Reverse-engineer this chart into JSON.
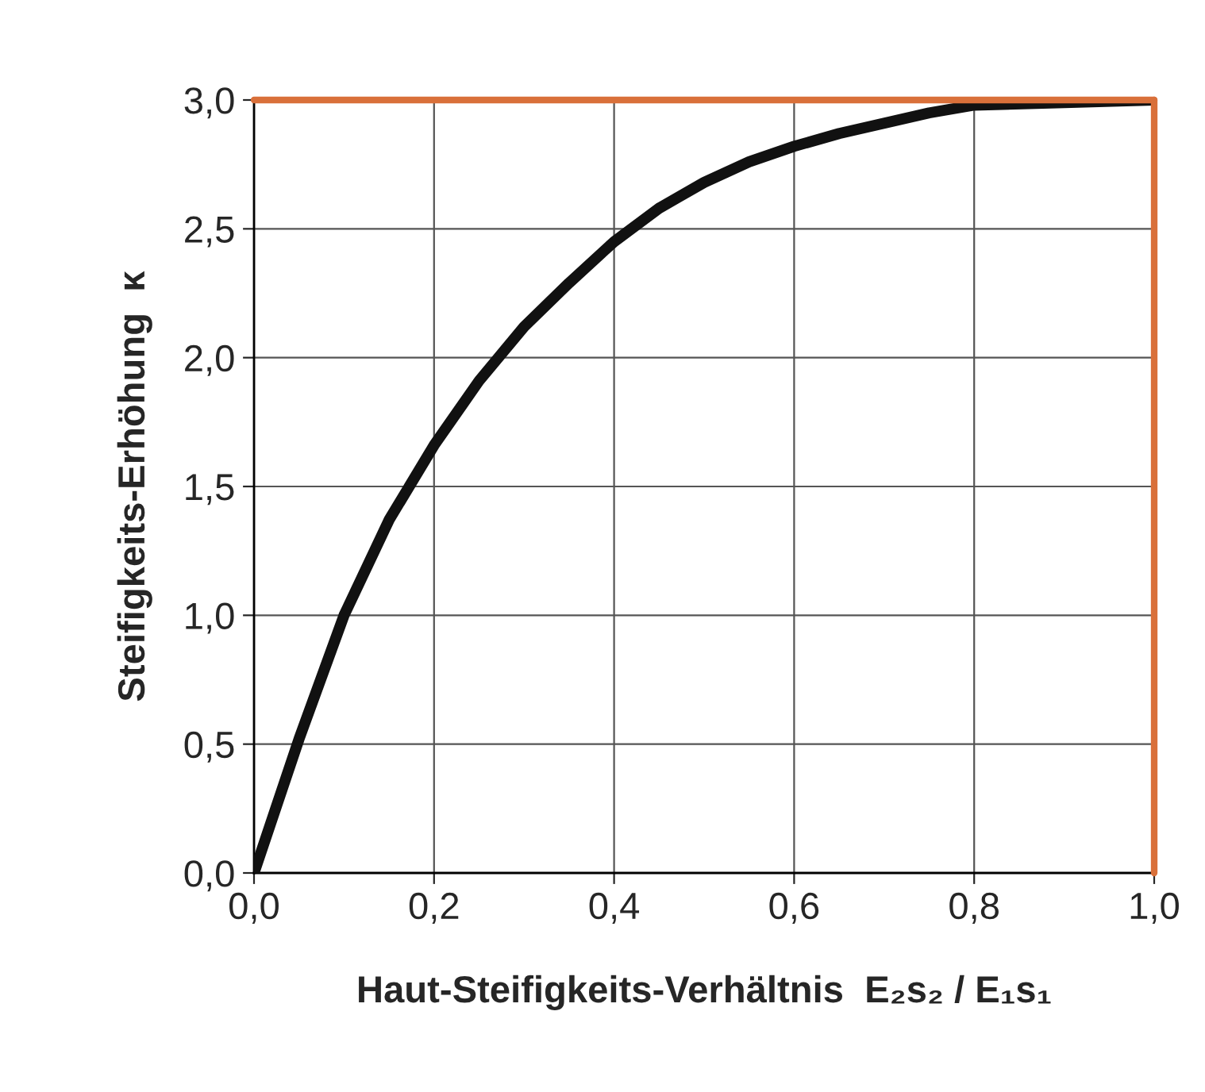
{
  "chart_data": {
    "type": "line",
    "xlabel": "Haut-Steifigkeits-Verhältnis  E₂s₂ / E₁s₁",
    "ylabel": "Steifigkeits-Erhöhung  κ",
    "xlim": [
      0,
      1
    ],
    "ylim": [
      0,
      3
    ],
    "xticks": [
      {
        "value": 0,
        "label": "0,0"
      },
      {
        "value": 0.2,
        "label": "0,2"
      },
      {
        "value": 0.4,
        "label": "0,4"
      },
      {
        "value": 0.6,
        "label": "0,6"
      },
      {
        "value": 0.8,
        "label": "0,8"
      },
      {
        "value": 1,
        "label": "1,0"
      }
    ],
    "yticks": [
      {
        "value": 0,
        "label": "0,0"
      },
      {
        "value": 0.5,
        "label": "0,5"
      },
      {
        "value": 1,
        "label": "1,0"
      },
      {
        "value": 1.5,
        "label": "1,5"
      },
      {
        "value": 2,
        "label": "2,0"
      },
      {
        "value": 2.5,
        "label": "2,5"
      },
      {
        "value": 3,
        "label": "3,0"
      }
    ],
    "grid": true,
    "marker": "none",
    "line_style": "solid",
    "series": [
      {
        "color": "#111111",
        "x": [
          0,
          0.05,
          0.1,
          0.15,
          0.2,
          0.25,
          0.3,
          0.35,
          0.4,
          0.45,
          0.5,
          0.55,
          0.6,
          0.65,
          0.7,
          0.75,
          0.8,
          0.9,
          1.0
        ],
        "values": [
          0,
          0.52,
          1.0,
          1.37,
          1.66,
          1.91,
          2.12,
          2.29,
          2.45,
          2.58,
          2.68,
          2.76,
          2.82,
          2.87,
          2.91,
          2.95,
          2.98,
          2.99,
          3.0
        ]
      }
    ],
    "ref_lines": [
      {
        "axis": "y",
        "value": 3,
        "color": "#d9703a"
      },
      {
        "axis": "x",
        "value": 1,
        "color": "#d9703a"
      }
    ]
  }
}
